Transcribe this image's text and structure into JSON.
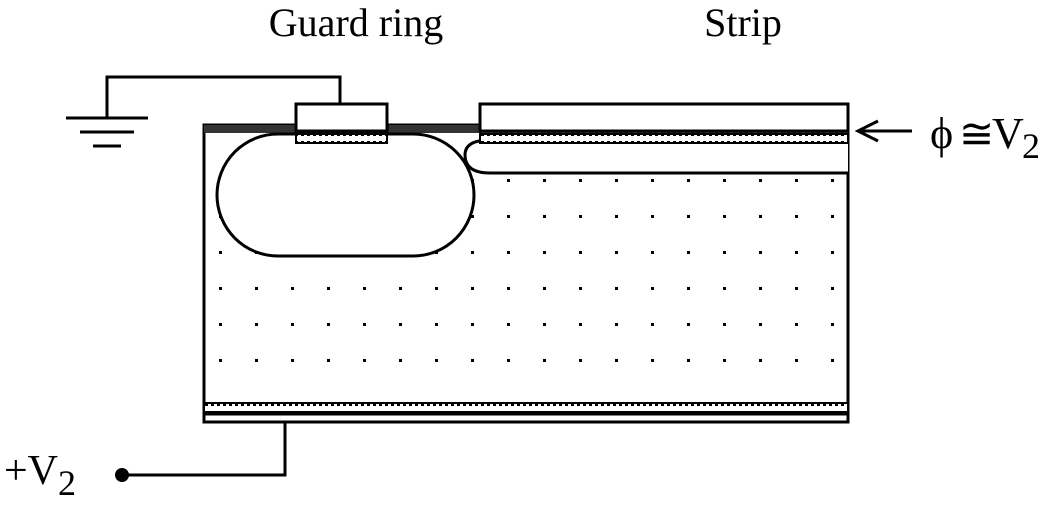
{
  "labels": {
    "guard_ring": "Guard ring",
    "strip": "Strip",
    "potential": {
      "phi": "ϕ",
      "approx": "≅",
      "v": "V",
      "subscript": "2"
    },
    "bias": {
      "prefix": "+V",
      "subscript": "2"
    }
  },
  "colors": {
    "ink": "#000000",
    "background": "#ffffff",
    "oxide": "#333333"
  },
  "icons": [
    "ground-icon",
    "arrow-left-icon",
    "terminal-dot-icon"
  ]
}
